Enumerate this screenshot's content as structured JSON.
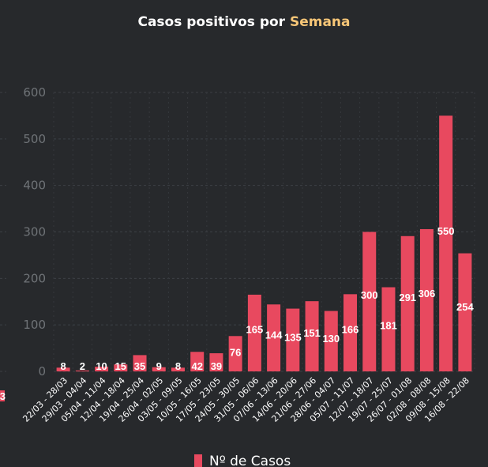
{
  "title": {
    "prefix": "Casos positivos por",
    "accent": "Semana",
    "accent_color": "#f7c677"
  },
  "chart_data": {
    "type": "bar",
    "categories": [
      "22/03 - 28/03",
      "29/03 - 04/04",
      "05/04 - 11/04",
      "12/04 - 18/04",
      "19/04 - 25/04",
      "26/04 - 02/05",
      "03/05 - 09/05",
      "10/05 - 16/05",
      "17/05 - 23/05",
      "24/05 - 30/05",
      "31/05 - 06/06",
      "07/06 - 13/06",
      "14/06 - 20/06",
      "21/06 - 27/06",
      "28/06 - 04/07",
      "05/07 - 11/07",
      "12/07 - 18/07",
      "19/07 - 25/07",
      "26/07 - 01/08",
      "02/08 - 08/08",
      "09/08 - 15/08",
      "16/08 - 22/08"
    ],
    "series": [
      {
        "name": "Nº de Casos",
        "color": "#e8495f",
        "values": [
          8,
          2,
          10,
          15,
          35,
          9,
          8,
          42,
          39,
          76,
          165,
          144,
          135,
          151,
          130,
          166,
          300,
          181,
          291,
          306,
          550,
          254
        ]
      }
    ],
    "yticks": [
      0,
      100,
      200,
      300,
      400,
      500,
      600
    ],
    "ylim": [
      0,
      600
    ],
    "grid": true,
    "legend_position": "bottom",
    "partial_left": {
      "ytick_labels": [
        "0",
        "100",
        "200",
        "300",
        "400",
        "500",
        "600"
      ],
      "data_label": "3"
    }
  }
}
